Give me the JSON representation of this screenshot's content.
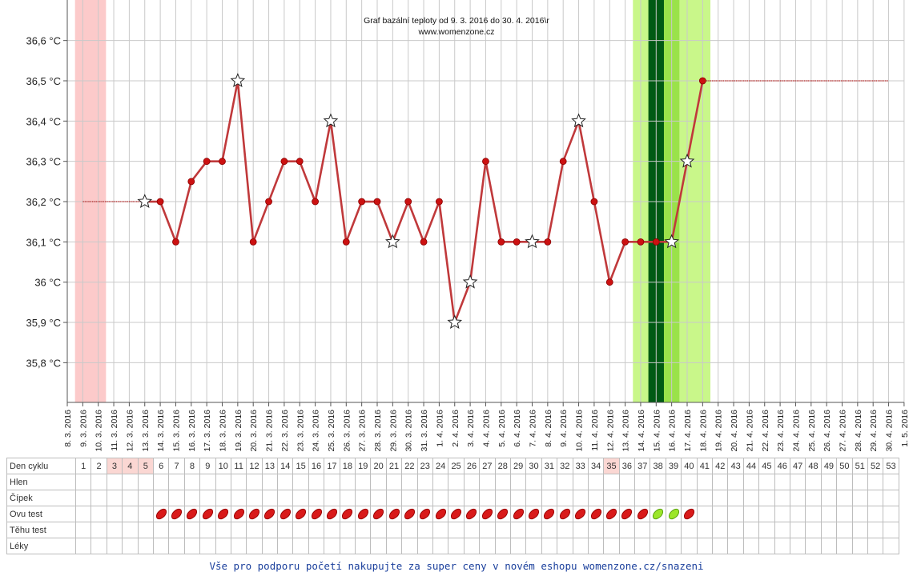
{
  "chart_data": {
    "type": "line",
    "title": "Graf bazální teploty od 9. 3. 2016 do 30. 4. 2016\\r",
    "subtitle": "www.womenzone.cz",
    "ylim": [
      35.7,
      36.7
    ],
    "yticks": [
      {
        "value": 35.8,
        "label": "35,8 °C"
      },
      {
        "value": 35.9,
        "label": "35,9 °C"
      },
      {
        "value": 36.0,
        "label": "36 °C"
      },
      {
        "value": 36.1,
        "label": "36,1 °C"
      },
      {
        "value": 36.2,
        "label": "36,2 °C"
      },
      {
        "value": 36.3,
        "label": "36,3 °C"
      },
      {
        "value": 36.4,
        "label": "36,4 °C"
      },
      {
        "value": 36.5,
        "label": "36,5 °C"
      },
      {
        "value": 36.6,
        "label": "36,6 °C"
      }
    ],
    "dates": [
      "8. 3. 2016",
      "9. 3. 2016",
      "10. 3. 2016",
      "11. 3. 2016",
      "12. 3. 2016",
      "13. 3. 2016",
      "14. 3. 2016",
      "15. 3. 2016",
      "16. 3. 2016",
      "17. 3. 2016",
      "18. 3. 2016",
      "19. 3. 2016",
      "20. 3. 2016",
      "21. 3. 2016",
      "22. 3. 2016",
      "23. 3. 2016",
      "24. 3. 2016",
      "25. 3. 2016",
      "26. 3. 2016",
      "27. 3. 2016",
      "28. 3. 2016",
      "29. 3. 2016",
      "30. 3. 2016",
      "31. 3. 2016",
      "1. 4. 2016",
      "2. 4. 2016",
      "3. 4. 2016",
      "4. 4. 2016",
      "5. 4. 2016",
      "6. 4. 2016",
      "7. 4. 2016",
      "8. 4. 2016",
      "9. 4. 2016",
      "10. 4. 2016",
      "11. 4. 2016",
      "12. 4. 2016",
      "13. 4. 2016",
      "14. 4. 2016",
      "15. 4. 2016",
      "16. 4. 2016",
      "17. 4. 2016",
      "18. 4. 2016",
      "19. 4. 2016",
      "20. 4. 2016",
      "21. 4. 2016",
      "22. 4. 2016",
      "23. 4. 2016",
      "24. 4. 2016",
      "25. 4. 2016",
      "26. 4. 2016",
      "27. 4. 2016",
      "28. 4. 2016",
      "29. 4. 2016",
      "30. 4. 2016",
      "1. 5. 2016"
    ],
    "series": [
      {
        "values": [
          {
            "date": "13. 3. 2016",
            "value": 36.2,
            "marker": "star"
          },
          {
            "date": "14. 3. 2016",
            "value": 36.2,
            "marker": "dot"
          },
          {
            "date": "15. 3. 2016",
            "value": 36.1,
            "marker": "dot"
          },
          {
            "date": "16. 3. 2016",
            "value": 36.25,
            "marker": "dot"
          },
          {
            "date": "17. 3. 2016",
            "value": 36.3,
            "marker": "dot"
          },
          {
            "date": "18. 3. 2016",
            "value": 36.3,
            "marker": "dot"
          },
          {
            "date": "19. 3. 2016",
            "value": 36.5,
            "marker": "star"
          },
          {
            "date": "20. 3. 2016",
            "value": 36.1,
            "marker": "dot"
          },
          {
            "date": "21. 3. 2016",
            "value": 36.2,
            "marker": "dot"
          },
          {
            "date": "22. 3. 2016",
            "value": 36.3,
            "marker": "dot"
          },
          {
            "date": "23. 3. 2016",
            "value": 36.3,
            "marker": "dot"
          },
          {
            "date": "24. 3. 2016",
            "value": 36.2,
            "marker": "dot"
          },
          {
            "date": "25. 3. 2016",
            "value": 36.4,
            "marker": "star"
          },
          {
            "date": "26. 3. 2016",
            "value": 36.1,
            "marker": "dot"
          },
          {
            "date": "27. 3. 2016",
            "value": 36.2,
            "marker": "dot"
          },
          {
            "date": "28. 3. 2016",
            "value": 36.2,
            "marker": "dot"
          },
          {
            "date": "29. 3. 2016",
            "value": 36.1,
            "marker": "star"
          },
          {
            "date": "30. 3. 2016",
            "value": 36.2,
            "marker": "dot"
          },
          {
            "date": "31. 3. 2016",
            "value": 36.1,
            "marker": "dot"
          },
          {
            "date": "1. 4. 2016",
            "value": 36.2,
            "marker": "dot"
          },
          {
            "date": "2. 4. 2016",
            "value": 35.9,
            "marker": "star"
          },
          {
            "date": "3. 4. 2016",
            "value": 36.0,
            "marker": "star"
          },
          {
            "date": "4. 4. 2016",
            "value": 36.3,
            "marker": "dot"
          },
          {
            "date": "5. 4. 2016",
            "value": 36.1,
            "marker": "dot"
          },
          {
            "date": "6. 4. 2016",
            "value": 36.1,
            "marker": "dot"
          },
          {
            "date": "7. 4. 2016",
            "value": 36.1,
            "marker": "star"
          },
          {
            "date": "8. 4. 2016",
            "value": 36.1,
            "marker": "dot"
          },
          {
            "date": "9. 4. 2016",
            "value": 36.3,
            "marker": "dot"
          },
          {
            "date": "10. 4. 2016",
            "value": 36.4,
            "marker": "star"
          },
          {
            "date": "11. 4. 2016",
            "value": 36.2,
            "marker": "dot"
          },
          {
            "date": "12. 4. 2016",
            "value": 36.0,
            "marker": "dot"
          },
          {
            "date": "13. 4. 2016",
            "value": 36.1,
            "marker": "dot"
          },
          {
            "date": "14. 4. 2016",
            "value": 36.1,
            "marker": "dot"
          },
          {
            "date": "15. 4. 2016",
            "value": 36.1,
            "marker": "dot"
          },
          {
            "date": "16. 4. 2016",
            "value": 36.1,
            "marker": "star"
          },
          {
            "date": "17. 4. 2016",
            "value": 36.3,
            "marker": "star"
          },
          {
            "date": "18. 4. 2016",
            "value": 36.5,
            "marker": "dot"
          }
        ]
      }
    ],
    "reference_lines": [
      {
        "from": "9. 3. 2016",
        "to": "13. 3. 2016",
        "value": 36.2
      },
      {
        "from": "18. 4. 2016",
        "to": "30. 4. 2016",
        "value": 36.5
      }
    ],
    "bands": [
      {
        "from": "9. 3. 2016",
        "to": "10. 3. 2016",
        "color": "#fccaca"
      },
      {
        "from": "14. 4. 2016",
        "to": "18. 4. 2016",
        "color": "#c9f78a"
      },
      {
        "from": "15. 4. 2016",
        "to": "16. 4. 2016",
        "color": "#9ae24a"
      },
      {
        "from": "15. 4. 2016",
        "to": "15. 4. 2016",
        "color": "#005a14"
      }
    ],
    "grid": true,
    "line_color": "#c0393b",
    "marker_color": "#cc1111"
  },
  "table": {
    "rows": [
      {
        "label": "Den cyklu",
        "kind": "days"
      },
      {
        "label": "Hlen",
        "kind": "empty"
      },
      {
        "label": "Čípek",
        "kind": "empty"
      },
      {
        "label": "Ovu test",
        "kind": "ovu"
      },
      {
        "label": "Těhu test",
        "kind": "empty"
      },
      {
        "label": "Léky",
        "kind": "empty"
      }
    ],
    "days": [
      1,
      2,
      3,
      4,
      5,
      6,
      7,
      8,
      9,
      10,
      11,
      12,
      13,
      14,
      15,
      16,
      17,
      18,
      19,
      20,
      21,
      22,
      23,
      24,
      25,
      26,
      27,
      28,
      29,
      30,
      31,
      32,
      33,
      34,
      35,
      36,
      37,
      38,
      39,
      40,
      41,
      42,
      43,
      44,
      45,
      46,
      47,
      48,
      49,
      50,
      51,
      52,
      53
    ],
    "highlight_days": [
      3,
      4,
      5,
      35
    ],
    "ovu_test": {
      "red_days": [
        6,
        7,
        8,
        9,
        10,
        11,
        12,
        13,
        14,
        15,
        16,
        17,
        18,
        19,
        20,
        21,
        22,
        23,
        24,
        25,
        26,
        27,
        28,
        29,
        30,
        31,
        32,
        33,
        34,
        35,
        36,
        37,
        40
      ],
      "green_days": [
        38,
        39
      ]
    }
  },
  "footer": {
    "text": "Vše pro podporu početí nakupujte za super ceny v novém eshopu womenzone.cz/snazeni"
  }
}
